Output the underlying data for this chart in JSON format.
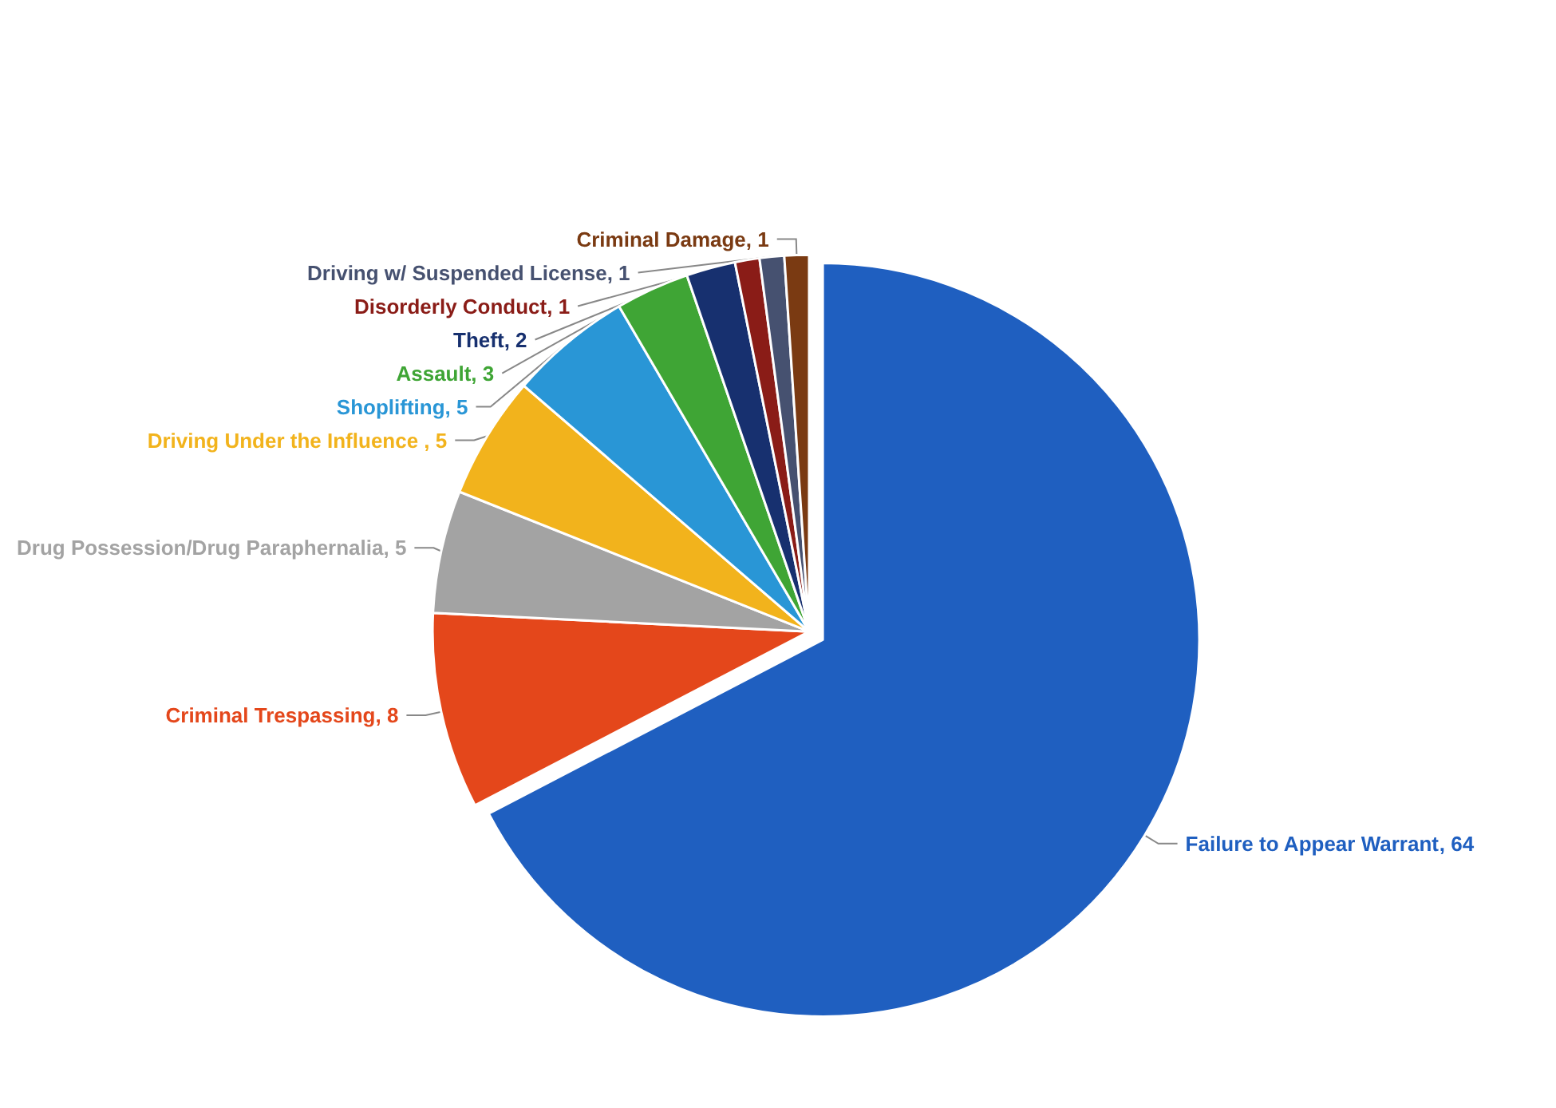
{
  "chart_data": {
    "type": "pie",
    "categories": [
      "Failure to Appear Warrant",
      "Criminal Trespassing",
      "Drug Possession/Drug Paraphernalia",
      "Driving Under the Influence",
      "Shoplifting",
      "Assault",
      "Theft",
      "Disorderly Conduct",
      "Driving w/ Suspended License",
      "Criminal Damage"
    ],
    "values": [
      64,
      8,
      5,
      5,
      5,
      3,
      2,
      1,
      1,
      1
    ],
    "colors": [
      "#1f5fc0",
      "#e4471b",
      "#a3a3a3",
      "#f2b31c",
      "#2996d6",
      "#3fa535",
      "#17306f",
      "#8a1c17",
      "#465170",
      "#7a3a12"
    ],
    "value_labels": [
      ", 64",
      ", 8",
      ", 5",
      " , 5",
      ", 5",
      ", 3",
      ", 2",
      ", 1",
      ", 1",
      ", 1"
    ],
    "legend": false
  }
}
